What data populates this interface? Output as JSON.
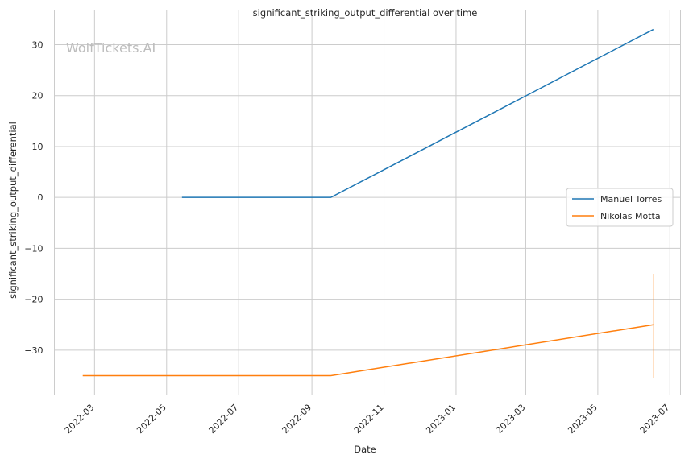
{
  "chart_data": {
    "type": "line",
    "title": "significant_striking_output_differential over time",
    "xlabel": "Date",
    "ylabel": "significant_striking_output_differential",
    "watermark": "WolfTickets.AI",
    "x_ticks": [
      "2022-03-01",
      "2022-05-01",
      "2022-07-01",
      "2022-09-01",
      "2022-11-01",
      "2023-01-01",
      "2023-03-01",
      "2023-05-01",
      "2023-07-01"
    ],
    "x_tick_labels": [
      "2022-03",
      "2022-05",
      "2022-07",
      "2022-09",
      "2022-11",
      "2023-01",
      "2023-03",
      "2023-05",
      "2023-07"
    ],
    "xlim": [
      "2022-01-26",
      "2023-07-10"
    ],
    "y_ticks": [
      -30,
      -20,
      -10,
      0,
      10,
      20,
      30
    ],
    "y_tick_labels": [
      "−30",
      "−20",
      "−10",
      "0",
      "10",
      "20",
      "30"
    ],
    "ylim": [
      -38.8,
      36.8
    ],
    "grid": true,
    "legend_position": "center-right",
    "series": [
      {
        "name": "Manuel Torres",
        "color": "#1f77b4",
        "x": [
          "2022-05-14",
          "2022-09-17",
          "2023-06-17"
        ],
        "y": [
          0,
          0,
          33
        ]
      },
      {
        "name": "Nikolas Motta",
        "color": "#ff7f0e",
        "x": [
          "2022-02-19",
          "2022-09-17",
          "2023-06-17"
        ],
        "y": [
          -35,
          -35,
          -25
        ],
        "band": {
          "x": "2023-06-17",
          "low": -35.5,
          "high": -15
        }
      }
    ]
  }
}
